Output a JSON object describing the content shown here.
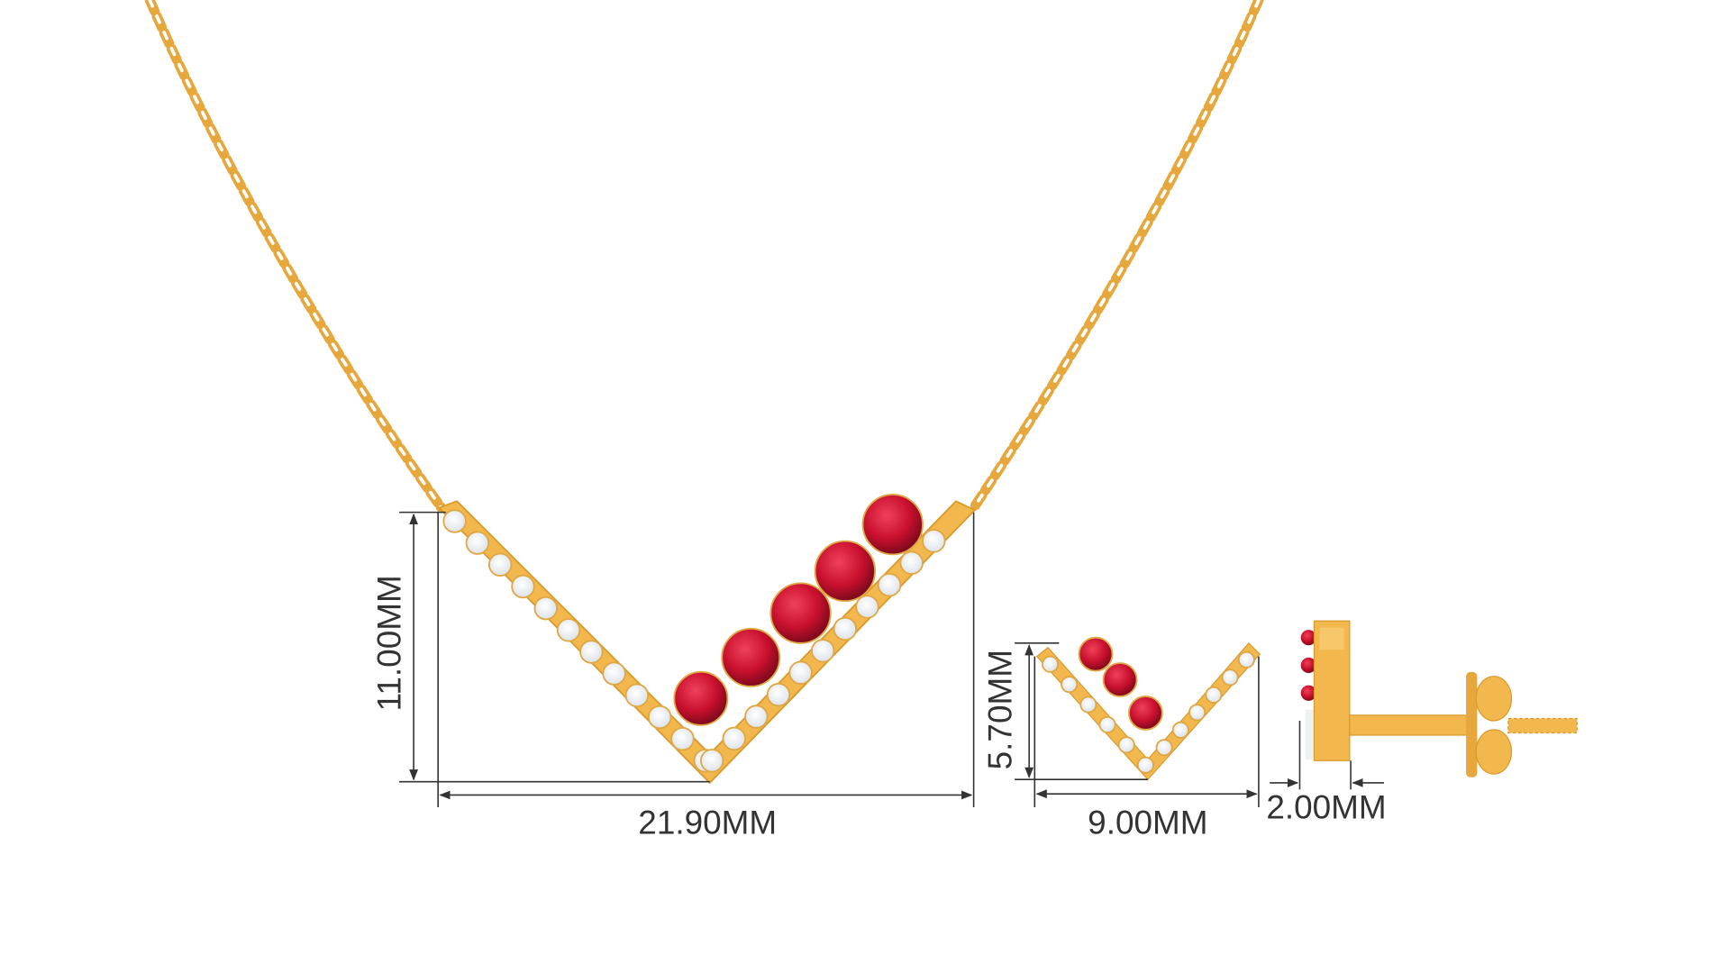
{
  "product": {
    "necklace": {
      "height_label": "11.00MM",
      "width_label": "21.90MM",
      "ruby_count": 5
    },
    "earring_front": {
      "height_label": "5.70MM",
      "width_label": "9.00MM",
      "ruby_count": 3
    },
    "earring_side": {
      "depth_label": "2.00MM"
    }
  },
  "colors": {
    "gold": "#f2b84e",
    "gold_dark": "#d99a2b",
    "ruby": "#c8102e",
    "diamond": "#f4f6f8",
    "dimension": "#333333"
  }
}
